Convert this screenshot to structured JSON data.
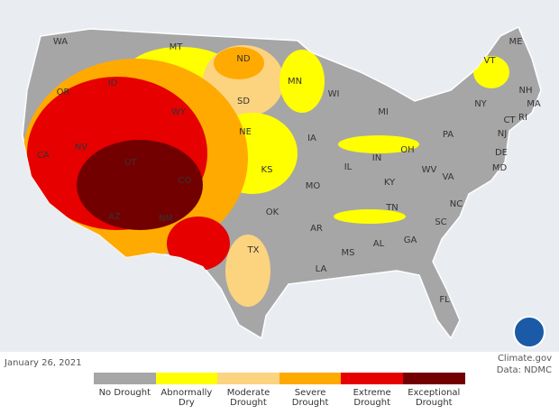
{
  "map": {
    "states": [
      "WA",
      "MT",
      "ND",
      "MN",
      "ME",
      "VT",
      "NH",
      "MA",
      "RI",
      "CT",
      "NY",
      "NJ",
      "DE",
      "MD",
      "ID",
      "OR",
      "WY",
      "SD",
      "WI",
      "MI",
      "PA",
      "NV",
      "CA",
      "UT",
      "NE",
      "IA",
      "IL",
      "IN",
      "OH",
      "WV",
      "VA",
      "CO",
      "KS",
      "MO",
      "KY",
      "NC",
      "TN",
      "AZ",
      "NM",
      "OK",
      "AR",
      "SC",
      "GA",
      "AL",
      "MS",
      "TX",
      "LA",
      "FL"
    ],
    "date": "January 26, 2021",
    "credit": "Climate.gov",
    "source": "Data: NDMC",
    "legend": [
      {
        "label": "No Drought",
        "color": "#a6a6a6"
      },
      {
        "label": "Abnormally Dry",
        "color": "#ffff00"
      },
      {
        "label": "Moderate Drought",
        "color": "#fcd37f"
      },
      {
        "label": "Severe Drought",
        "color": "#ffaa00"
      },
      {
        "label": "Extreme Drought",
        "color": "#e60000"
      },
      {
        "label": "Exceptional Drought",
        "color": "#730000"
      }
    ]
  }
}
